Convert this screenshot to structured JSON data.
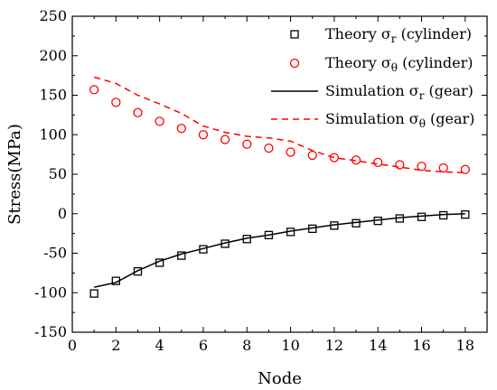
{
  "chart_data": {
    "type": "line",
    "xlabel": "Node",
    "ylabel": "Stress(MPa)",
    "xlim": [
      0,
      19
    ],
    "ylim": [
      -150,
      250
    ],
    "xticks": [
      0,
      2,
      4,
      6,
      8,
      10,
      12,
      14,
      16,
      18
    ],
    "yticks": [
      -150,
      -100,
      -50,
      0,
      50,
      100,
      150,
      200,
      250
    ],
    "grid": false,
    "legend_position": "top-right",
    "series": [
      {
        "name": "Theory σr (cylinder)",
        "legend": {
          "prefix": "Theory σ",
          "sub": "r",
          "suffix": " (cylinder)"
        },
        "style": "square-markers",
        "color": "#000000",
        "x": [
          1,
          2,
          3,
          4,
          5,
          6,
          7,
          8,
          9,
          10,
          11,
          12,
          13,
          14,
          15,
          16,
          17,
          18
        ],
        "y": [
          -101,
          -85,
          -73,
          -62,
          -53,
          -45,
          -38,
          -32,
          -27,
          -23,
          -19,
          -15,
          -12,
          -9,
          -6,
          -4,
          -2,
          -1
        ]
      },
      {
        "name": "Theory σθ (cylinder)",
        "legend": {
          "prefix": "Theory σ",
          "sub": "θ",
          "suffix": " (cylinder)"
        },
        "style": "circle-markers",
        "color": "#ff0000",
        "x": [
          1,
          2,
          3,
          4,
          5,
          6,
          7,
          8,
          9,
          10,
          11,
          12,
          13,
          14,
          15,
          16,
          17,
          18
        ],
        "y": [
          157,
          141,
          128,
          117,
          108,
          100,
          94,
          88,
          83,
          78,
          74,
          71,
          68,
          65,
          62,
          60,
          58,
          56
        ]
      },
      {
        "name": "Simulation σr (gear)",
        "legend": {
          "prefix": "Simulation σ",
          "sub": "r",
          "suffix": " (gear)"
        },
        "style": "solid-line",
        "color": "#000000",
        "x": [
          1,
          2,
          3,
          4,
          5,
          6,
          7,
          8,
          9,
          10,
          11,
          12,
          13,
          14,
          15,
          16,
          17,
          18
        ],
        "y": [
          -93,
          -87,
          -72,
          -60,
          -51,
          -44,
          -37,
          -31,
          -27,
          -22,
          -18,
          -14,
          -11,
          -8,
          -5,
          -3,
          -1,
          0
        ]
      },
      {
        "name": "Simulation σθ (gear)",
        "legend": {
          "prefix": "Simulation σ",
          "sub": "θ",
          "suffix": " (gear)"
        },
        "style": "dashed-line",
        "color": "#ff0000",
        "x": [
          1,
          2,
          3,
          4,
          5,
          6,
          7,
          8,
          9,
          10,
          11,
          12,
          13,
          14,
          15,
          16,
          17,
          18
        ],
        "y": [
          173,
          165,
          150,
          139,
          127,
          111,
          103,
          98,
          96,
          92,
          80,
          71,
          67,
          63,
          59,
          55,
          53,
          52
        ]
      }
    ]
  }
}
